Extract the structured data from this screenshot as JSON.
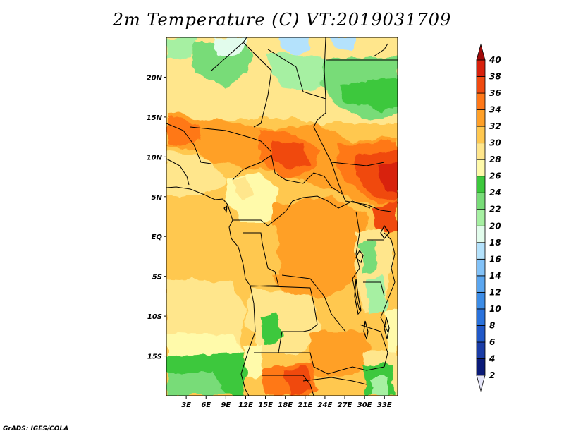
{
  "title": "2m Temperature (C) VT:2019031709",
  "credit": "GrADS: IGES/COLA",
  "map": {
    "lon_range": [
      0,
      35
    ],
    "lat_range": [
      -20,
      25
    ],
    "lat_ticks": [
      {
        "value": 20,
        "label": "20N"
      },
      {
        "value": 15,
        "label": "15N"
      },
      {
        "value": 10,
        "label": "10N"
      },
      {
        "value": 5,
        "label": "5N"
      },
      {
        "value": 0,
        "label": "EQ"
      },
      {
        "value": -5,
        "label": "5S"
      },
      {
        "value": -10,
        "label": "10S"
      },
      {
        "value": -15,
        "label": "15S"
      }
    ],
    "lon_ticks": [
      {
        "value": 3,
        "label": "3E"
      },
      {
        "value": 6,
        "label": "6E"
      },
      {
        "value": 9,
        "label": "9E"
      },
      {
        "value": 12,
        "label": "12E"
      },
      {
        "value": 15,
        "label": "15E"
      },
      {
        "value": 18,
        "label": "18E"
      },
      {
        "value": 21,
        "label": "21E"
      },
      {
        "value": 24,
        "label": "24E"
      },
      {
        "value": 27,
        "label": "27E"
      },
      {
        "value": 30,
        "label": "30E"
      },
      {
        "value": 33,
        "label": "33E"
      }
    ]
  },
  "colorbar": {
    "bins": [
      {
        "min": 2,
        "max": 4,
        "color": "#0a1a78"
      },
      {
        "min": 4,
        "max": 6,
        "color": "#1a3ca6"
      },
      {
        "min": 6,
        "max": 8,
        "color": "#2058c8"
      },
      {
        "min": 8,
        "max": 10,
        "color": "#2a72dc"
      },
      {
        "min": 10,
        "max": 12,
        "color": "#3c8ce6"
      },
      {
        "min": 12,
        "max": 14,
        "color": "#5aa6f0"
      },
      {
        "min": 14,
        "max": 16,
        "color": "#82c2f8"
      },
      {
        "min": 16,
        "max": 18,
        "color": "#b4e2fc"
      },
      {
        "min": 18,
        "max": 20,
        "color": "#e2fcec"
      },
      {
        "min": 20,
        "max": 22,
        "color": "#a6f0a2"
      },
      {
        "min": 22,
        "max": 24,
        "color": "#78dc78"
      },
      {
        "min": 24,
        "max": 26,
        "color": "#3cc83c"
      },
      {
        "min": 26,
        "max": 28,
        "color": "#fffaaa"
      },
      {
        "min": 28,
        "max": 30,
        "color": "#ffe68c"
      },
      {
        "min": 30,
        "max": 32,
        "color": "#ffc850"
      },
      {
        "min": 32,
        "max": 34,
        "color": "#ffa028"
      },
      {
        "min": 34,
        "max": 36,
        "color": "#ff7818"
      },
      {
        "min": 36,
        "max": 38,
        "color": "#f04a10"
      },
      {
        "min": 38,
        "max": 40,
        "color": "#d8200c"
      },
      {
        "min": 40,
        "max": null,
        "color": "#a00a0a"
      }
    ],
    "under_color": "#e6e6fa",
    "tick_labels": [
      "2",
      "4",
      "6",
      "8",
      "10",
      "12",
      "14",
      "16",
      "18",
      "20",
      "22",
      "24",
      "26",
      "28",
      "30",
      "32",
      "34",
      "36",
      "38",
      "40"
    ]
  }
}
